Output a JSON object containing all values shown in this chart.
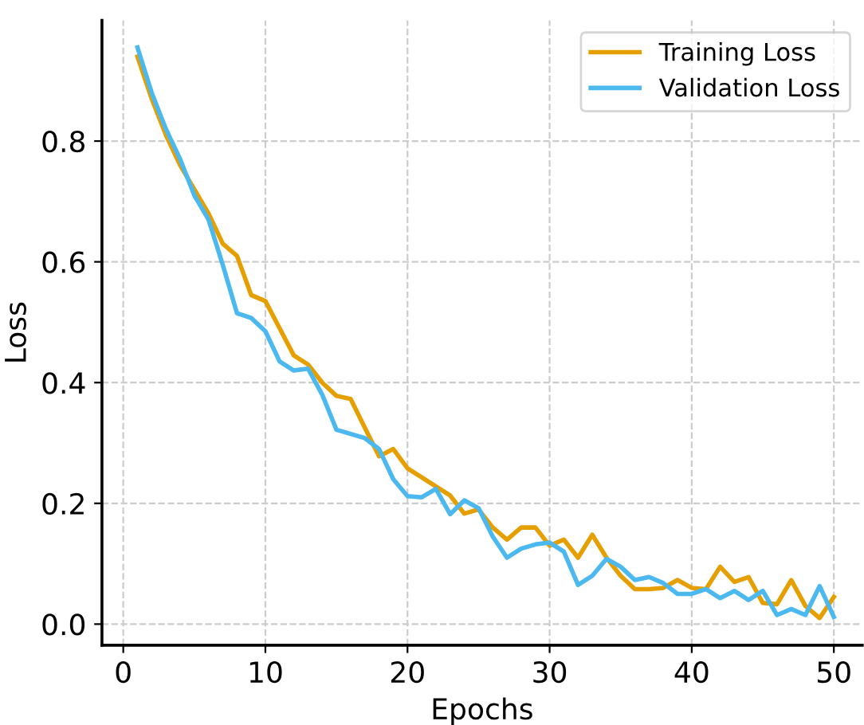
{
  "chart_data": {
    "type": "line",
    "xlabel": "Epochs",
    "ylabel": "Loss",
    "x": [
      1,
      2,
      3,
      4,
      5,
      6,
      7,
      8,
      9,
      10,
      11,
      12,
      13,
      14,
      15,
      16,
      17,
      18,
      19,
      20,
      21,
      22,
      23,
      24,
      25,
      26,
      27,
      28,
      29,
      30,
      31,
      32,
      33,
      34,
      35,
      36,
      37,
      38,
      39,
      40,
      41,
      42,
      43,
      44,
      45,
      46,
      47,
      48,
      49,
      50
    ],
    "series": [
      {
        "name": "Training Loss",
        "color": "#e69f00",
        "values": [
          0.94,
          0.87,
          0.81,
          0.76,
          0.72,
          0.68,
          0.63,
          0.61,
          0.545,
          0.535,
          0.49,
          0.445,
          0.43,
          0.4,
          0.378,
          0.373,
          0.325,
          0.278,
          0.29,
          0.258,
          0.243,
          0.228,
          0.213,
          0.183,
          0.19,
          0.16,
          0.14,
          0.16,
          0.16,
          0.13,
          0.14,
          0.11,
          0.148,
          0.11,
          0.08,
          0.058,
          0.058,
          0.06,
          0.073,
          0.06,
          0.058,
          0.095,
          0.07,
          0.078,
          0.035,
          0.033,
          0.073,
          0.03,
          0.01,
          0.045
        ]
      },
      {
        "name": "Validation Loss",
        "color": "#4cb8f0",
        "values": [
          0.955,
          0.88,
          0.82,
          0.77,
          0.71,
          0.67,
          0.595,
          0.515,
          0.507,
          0.485,
          0.435,
          0.42,
          0.423,
          0.38,
          0.322,
          0.315,
          0.308,
          0.29,
          0.24,
          0.212,
          0.21,
          0.224,
          0.182,
          0.205,
          0.192,
          0.145,
          0.11,
          0.125,
          0.132,
          0.135,
          0.12,
          0.065,
          0.08,
          0.108,
          0.095,
          0.073,
          0.078,
          0.068,
          0.05,
          0.05,
          0.058,
          0.043,
          0.055,
          0.04,
          0.055,
          0.015,
          0.025,
          0.015,
          0.063,
          0.012
        ]
      }
    ],
    "xlim": [
      -1.5,
      52
    ],
    "ylim": [
      -0.035,
      1.0
    ],
    "xticks": [
      0,
      10,
      20,
      30,
      40,
      50
    ],
    "yticks": [
      {
        "value": 0,
        "label": "0.0"
      },
      0.2,
      0.4,
      0.6,
      0.8
    ],
    "grid": true,
    "legend": "top right",
    "marker": "none",
    "line_style": "solid"
  }
}
